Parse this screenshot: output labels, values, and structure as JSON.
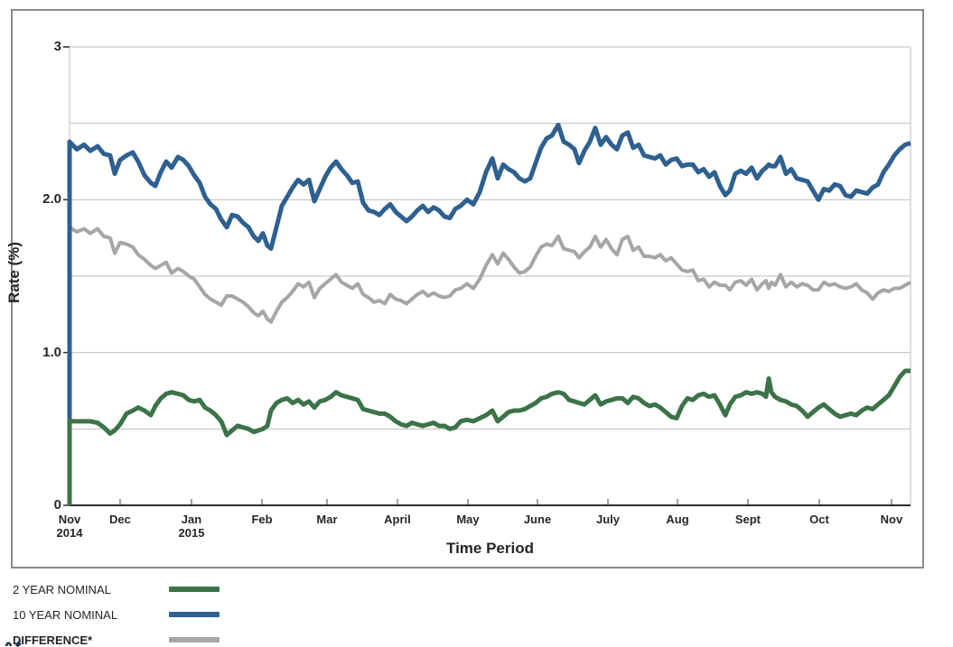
{
  "figure": {
    "background": "#ffffff",
    "outer_border_color": "#8a8a8a",
    "gridline_color": "#bdbdbd",
    "axis_line_color": "#2e2e2e",
    "tick_color": "#7d7d7d"
  },
  "chart_data": {
    "type": "line",
    "title": "",
    "xlabel": "Time Period",
    "ylabel": "Rate (%)",
    "ylim": [
      0,
      3
    ],
    "grid": true,
    "gridline_interval": 0.5,
    "legend_position": "bottom-left",
    "y_ticks": [
      {
        "label": "0",
        "value": 0
      },
      {
        "label": "1.0",
        "value": 1
      },
      {
        "label": "2.0",
        "value": 2
      },
      {
        "label": "3",
        "value": 3
      }
    ],
    "x_ticks": [
      {
        "label": "Nov",
        "year": "2014",
        "pos": 0.0
      },
      {
        "label": "Dec",
        "year": "",
        "pos": 0.0601
      },
      {
        "label": "Jan",
        "year": "2015",
        "pos": 0.145
      },
      {
        "label": "Feb",
        "year": "",
        "pos": 0.2288
      },
      {
        "label": "Mar",
        "year": "",
        "pos": 0.3061
      },
      {
        "label": "April",
        "year": "",
        "pos": 0.3899
      },
      {
        "label": "May",
        "year": "",
        "pos": 0.4737
      },
      {
        "label": "June",
        "year": "",
        "pos": 0.5564
      },
      {
        "label": "July",
        "year": "",
        "pos": 0.6402
      },
      {
        "label": "Aug",
        "year": "",
        "pos": 0.7229
      },
      {
        "label": "Sept",
        "year": "",
        "pos": 0.8066
      },
      {
        "label": "Oct",
        "year": "",
        "pos": 0.8915
      },
      {
        "label": "Nov",
        "year": "",
        "pos": 0.9774
      }
    ],
    "t": [
      0.0,
      0.0086,
      0.0172,
      0.0247,
      0.0333,
      0.0408,
      0.0483,
      0.0537,
      0.0601,
      0.0677,
      0.0752,
      0.0816,
      0.0891,
      0.0967,
      0.102,
      0.1085,
      0.1149,
      0.1214,
      0.1289,
      0.1353,
      0.1418,
      0.1482,
      0.1547,
      0.1611,
      0.1675,
      0.174,
      0.1804,
      0.1869,
      0.1933,
      0.1998,
      0.2062,
      0.2127,
      0.2191,
      0.2245,
      0.2299,
      0.2352,
      0.2395,
      0.246,
      0.2524,
      0.2589,
      0.2653,
      0.2718,
      0.2782,
      0.2847,
      0.2911,
      0.2975,
      0.304,
      0.3104,
      0.3169,
      0.3233,
      0.3298,
      0.3362,
      0.3427,
      0.3491,
      0.3555,
      0.362,
      0.3684,
      0.3749,
      0.3813,
      0.3878,
      0.3942,
      0.4007,
      0.4071,
      0.4135,
      0.42,
      0.4264,
      0.4329,
      0.4393,
      0.4458,
      0.4522,
      0.4587,
      0.4651,
      0.4726,
      0.4801,
      0.4877,
      0.4952,
      0.5027,
      0.5091,
      0.5156,
      0.522,
      0.5285,
      0.5349,
      0.5413,
      0.5478,
      0.5542,
      0.5607,
      0.5671,
      0.5736,
      0.5811,
      0.5875,
      0.594,
      0.6004,
      0.6058,
      0.6122,
      0.6187,
      0.6251,
      0.6316,
      0.638,
      0.6445,
      0.6509,
      0.6573,
      0.6638,
      0.6702,
      0.6767,
      0.6831,
      0.6896,
      0.696,
      0.7025,
      0.7089,
      0.7153,
      0.7218,
      0.7282,
      0.7347,
      0.7411,
      0.7476,
      0.754,
      0.7605,
      0.7669,
      0.7733,
      0.7798,
      0.7852,
      0.7916,
      0.7981,
      0.8045,
      0.811,
      0.8174,
      0.8238,
      0.8281,
      0.8314,
      0.8346,
      0.8389,
      0.8453,
      0.8518,
      0.8582,
      0.8647,
      0.8711,
      0.8776,
      0.884,
      0.8905,
      0.8969,
      0.9033,
      0.9098,
      0.9162,
      0.9227,
      0.9291,
      0.9355,
      0.942,
      0.9484,
      0.9549,
      0.9613,
      0.9678,
      0.9742,
      0.9807,
      0.9871,
      0.9936,
      1.0
    ],
    "series": [
      {
        "name": "2 YEAR NOMINAL",
        "color": "#3c7348",
        "stroke_width": 5,
        "start_at_zero": true,
        "values": [
          0.55,
          0.55,
          0.55,
          0.55,
          0.54,
          0.51,
          0.47,
          0.49,
          0.53,
          0.6,
          0.62,
          0.64,
          0.62,
          0.59,
          0.65,
          0.7,
          0.73,
          0.74,
          0.73,
          0.72,
          0.69,
          0.68,
          0.69,
          0.64,
          0.62,
          0.59,
          0.55,
          0.46,
          0.49,
          0.52,
          0.51,
          0.5,
          0.48,
          0.49,
          0.5,
          0.52,
          0.62,
          0.67,
          0.69,
          0.7,
          0.67,
          0.69,
          0.66,
          0.68,
          0.64,
          0.68,
          0.69,
          0.71,
          0.74,
          0.72,
          0.71,
          0.7,
          0.69,
          0.63,
          0.62,
          0.61,
          0.6,
          0.6,
          0.58,
          0.55,
          0.53,
          0.52,
          0.54,
          0.53,
          0.52,
          0.53,
          0.54,
          0.52,
          0.52,
          0.5,
          0.51,
          0.55,
          0.56,
          0.55,
          0.57,
          0.59,
          0.62,
          0.55,
          0.58,
          0.61,
          0.62,
          0.62,
          0.63,
          0.65,
          0.67,
          0.7,
          0.71,
          0.73,
          0.74,
          0.73,
          0.69,
          0.68,
          0.67,
          0.66,
          0.69,
          0.72,
          0.66,
          0.68,
          0.69,
          0.7,
          0.7,
          0.67,
          0.71,
          0.7,
          0.67,
          0.65,
          0.66,
          0.64,
          0.61,
          0.58,
          0.57,
          0.65,
          0.7,
          0.69,
          0.72,
          0.73,
          0.71,
          0.72,
          0.66,
          0.59,
          0.66,
          0.71,
          0.72,
          0.74,
          0.73,
          0.74,
          0.73,
          0.71,
          0.83,
          0.74,
          0.71,
          0.69,
          0.68,
          0.66,
          0.65,
          0.62,
          0.58,
          0.61,
          0.64,
          0.66,
          0.63,
          0.6,
          0.58,
          0.59,
          0.6,
          0.59,
          0.62,
          0.64,
          0.63,
          0.66,
          0.69,
          0.72,
          0.78,
          0.84,
          0.88,
          0.88
        ]
      },
      {
        "name": "10 YEAR NOMINAL",
        "color": "#2e6090",
        "stroke_width": 5,
        "start_at_zero": true,
        "values": [
          2.38,
          2.33,
          2.36,
          2.32,
          2.35,
          2.3,
          2.29,
          2.17,
          2.26,
          2.29,
          2.31,
          2.25,
          2.16,
          2.11,
          2.09,
          2.18,
          2.25,
          2.21,
          2.28,
          2.26,
          2.22,
          2.16,
          2.11,
          2.02,
          1.97,
          1.94,
          1.87,
          1.82,
          1.9,
          1.89,
          1.85,
          1.82,
          1.76,
          1.73,
          1.78,
          1.7,
          1.68,
          1.82,
          1.96,
          2.02,
          2.08,
          2.13,
          2.1,
          2.13,
          1.99,
          2.07,
          2.15,
          2.21,
          2.25,
          2.2,
          2.16,
          2.11,
          2.12,
          1.98,
          1.93,
          1.92,
          1.9,
          1.94,
          1.97,
          1.92,
          1.89,
          1.86,
          1.89,
          1.93,
          1.96,
          1.92,
          1.95,
          1.93,
          1.89,
          1.88,
          1.94,
          1.96,
          2.0,
          1.97,
          2.05,
          2.18,
          2.27,
          2.14,
          2.23,
          2.2,
          2.18,
          2.14,
          2.12,
          2.14,
          2.24,
          2.34,
          2.4,
          2.42,
          2.49,
          2.38,
          2.36,
          2.33,
          2.24,
          2.32,
          2.38,
          2.47,
          2.36,
          2.41,
          2.36,
          2.33,
          2.42,
          2.44,
          2.34,
          2.36,
          2.29,
          2.28,
          2.27,
          2.29,
          2.23,
          2.26,
          2.27,
          2.22,
          2.23,
          2.23,
          2.18,
          2.2,
          2.15,
          2.18,
          2.09,
          2.03,
          2.06,
          2.17,
          2.19,
          2.17,
          2.21,
          2.14,
          2.19,
          2.21,
          2.23,
          2.22,
          2.22,
          2.28,
          2.17,
          2.2,
          2.14,
          2.13,
          2.12,
          2.06,
          2.0,
          2.07,
          2.06,
          2.1,
          2.09,
          2.03,
          2.02,
          2.06,
          2.05,
          2.04,
          2.08,
          2.1,
          2.18,
          2.23,
          2.29,
          2.33,
          2.36,
          2.37
        ]
      },
      {
        "name": "DIFFERENCE*",
        "color": "#a6a6a6",
        "stroke_width": 4,
        "start_at_zero": true,
        "values": [
          1.82,
          1.79,
          1.81,
          1.78,
          1.81,
          1.76,
          1.75,
          1.65,
          1.72,
          1.71,
          1.69,
          1.64,
          1.61,
          1.57,
          1.55,
          1.57,
          1.59,
          1.52,
          1.55,
          1.53,
          1.5,
          1.48,
          1.43,
          1.38,
          1.35,
          1.33,
          1.31,
          1.37,
          1.37,
          1.35,
          1.33,
          1.3,
          1.26,
          1.24,
          1.27,
          1.22,
          1.2,
          1.27,
          1.33,
          1.36,
          1.4,
          1.45,
          1.43,
          1.46,
          1.36,
          1.42,
          1.45,
          1.48,
          1.51,
          1.46,
          1.44,
          1.42,
          1.45,
          1.38,
          1.36,
          1.33,
          1.34,
          1.32,
          1.38,
          1.35,
          1.34,
          1.32,
          1.35,
          1.38,
          1.4,
          1.37,
          1.39,
          1.37,
          1.36,
          1.37,
          1.41,
          1.42,
          1.45,
          1.42,
          1.48,
          1.57,
          1.64,
          1.58,
          1.65,
          1.61,
          1.56,
          1.52,
          1.53,
          1.56,
          1.63,
          1.69,
          1.71,
          1.7,
          1.76,
          1.68,
          1.67,
          1.66,
          1.62,
          1.66,
          1.69,
          1.76,
          1.69,
          1.74,
          1.68,
          1.64,
          1.74,
          1.76,
          1.67,
          1.69,
          1.63,
          1.63,
          1.62,
          1.64,
          1.6,
          1.62,
          1.58,
          1.54,
          1.53,
          1.54,
          1.47,
          1.48,
          1.43,
          1.46,
          1.44,
          1.44,
          1.41,
          1.46,
          1.47,
          1.44,
          1.48,
          1.41,
          1.45,
          1.47,
          1.42,
          1.46,
          1.44,
          1.51,
          1.43,
          1.46,
          1.43,
          1.45,
          1.44,
          1.41,
          1.41,
          1.46,
          1.44,
          1.45,
          1.43,
          1.42,
          1.43,
          1.45,
          1.41,
          1.39,
          1.35,
          1.39,
          1.41,
          1.4,
          1.42,
          1.42,
          1.44,
          1.46
        ]
      }
    ],
    "draw_order": [
      2,
      1,
      0
    ]
  },
  "legend": {
    "items": [
      {
        "label": "2 YEAR NOMINAL",
        "color": "#3c7348",
        "bold": false
      },
      {
        "label": "10 YEAR NOMINAL",
        "color": "#2e6090",
        "bold": false
      },
      {
        "label": "DIFFERENCE*",
        "color": "#a6a6a6",
        "bold": true
      }
    ]
  }
}
